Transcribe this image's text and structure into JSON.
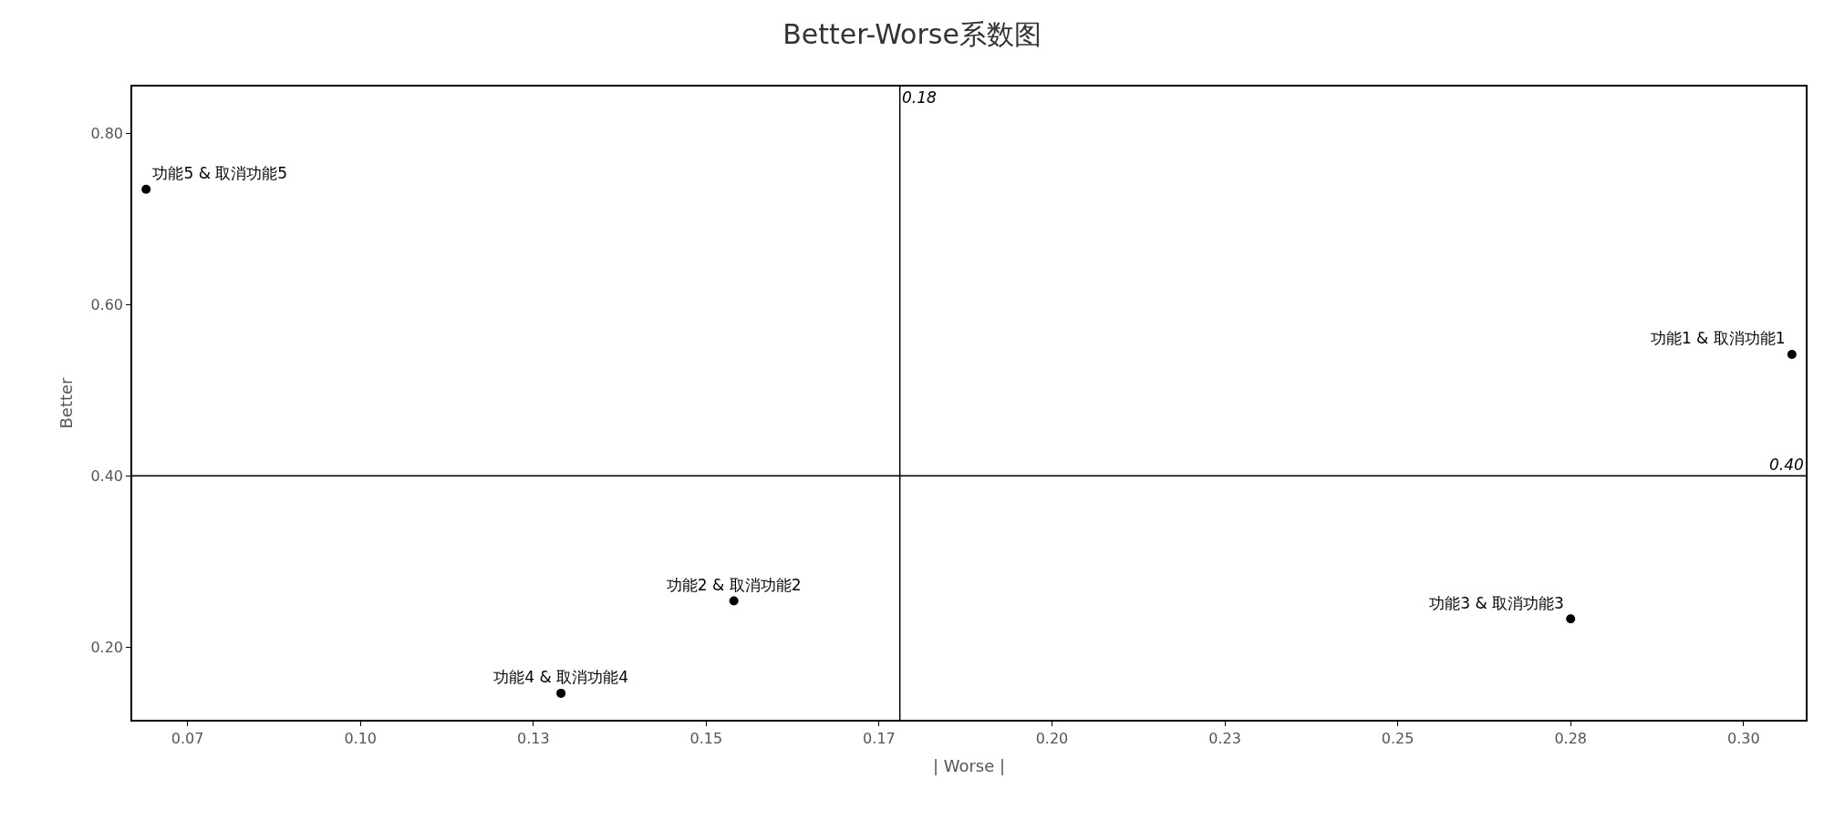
{
  "chart_data": {
    "type": "scatter",
    "title": "Better-Worse系数图",
    "xlabel": "| Worse |",
    "ylabel": "Better",
    "series": [
      {
        "name": "功能1 & 取消功能1",
        "color": "#000000",
        "x": [
          0.307
        ],
        "values": [
          0.542
        ]
      },
      {
        "name": "功能2 & 取消功能2",
        "color": "#000000",
        "x": [
          0.154
        ],
        "values": [
          0.254
        ]
      },
      {
        "name": "功能3 & 取消功能3",
        "color": "#000000",
        "x": [
          0.275
        ],
        "values": [
          0.233
        ]
      },
      {
        "name": "功能4 & 取消功能4",
        "color": "#000000",
        "x": [
          0.129
        ],
        "values": [
          0.146
        ]
      },
      {
        "name": "功能5 & 取消功能5",
        "color": "#000000",
        "x": [
          0.069
        ],
        "values": [
          0.735
        ]
      }
    ],
    "xlim": [
      0.067,
      0.309
    ],
    "ylim": [
      0.115,
      0.855
    ],
    "xticks": [
      {
        "value": 0.075,
        "label": "0.07"
      },
      {
        "value": 0.1,
        "label": "0.10"
      },
      {
        "value": 0.125,
        "label": "0.13"
      },
      {
        "value": 0.15,
        "label": "0.15"
      },
      {
        "value": 0.175,
        "label": "0.17"
      },
      {
        "value": 0.2,
        "label": "0.20"
      },
      {
        "value": 0.225,
        "label": "0.23"
      },
      {
        "value": 0.25,
        "label": "0.25"
      },
      {
        "value": 0.275,
        "label": "0.28"
      },
      {
        "value": 0.3,
        "label": "0.30"
      }
    ],
    "yticks": [
      {
        "value": 0.2,
        "label": "0.20"
      },
      {
        "value": 0.4,
        "label": "0.40"
      },
      {
        "value": 0.6,
        "label": "0.60"
      },
      {
        "value": 0.8,
        "label": "0.80"
      }
    ],
    "ref_lines": [
      {
        "axis": "x",
        "value": 0.178,
        "label": "0.18",
        "color": "#000000"
      },
      {
        "axis": "y",
        "value": 0.4,
        "label": "0.40",
        "color": "#000000"
      }
    ],
    "marker": "circle",
    "legend": false
  }
}
